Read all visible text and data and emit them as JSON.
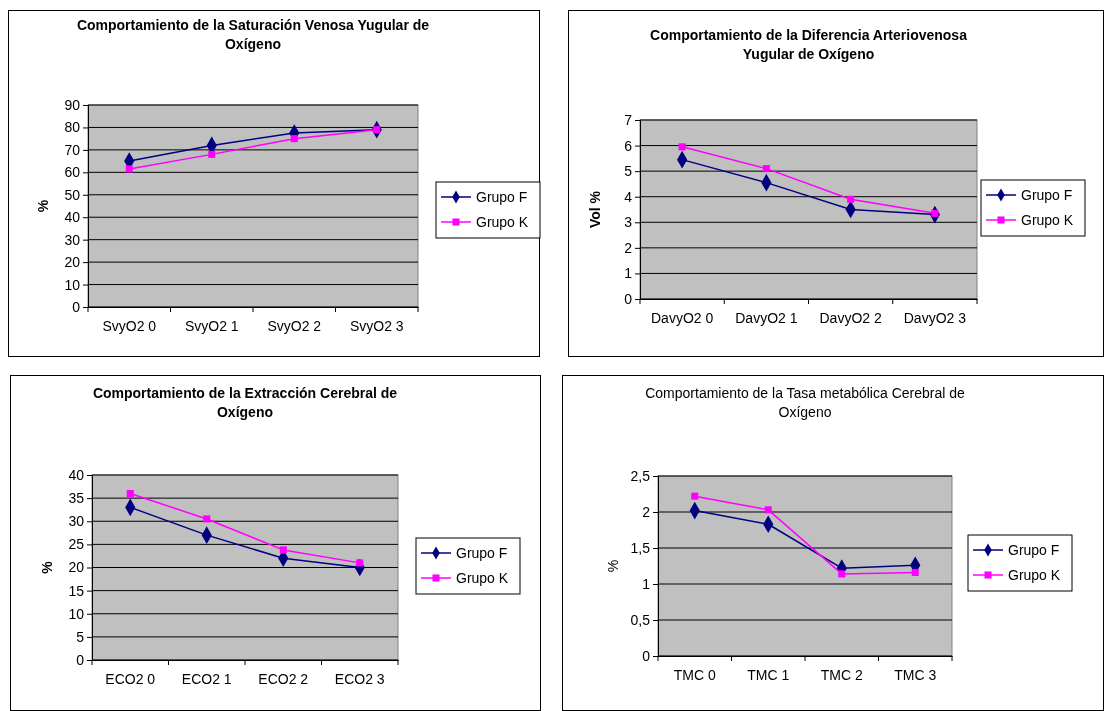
{
  "chart_data": [
    {
      "type": "line",
      "title": "Comportamiento  de la Saturación Venosa Yugular de Oxígeno",
      "ylabel": "%",
      "categories": [
        "SvyO2 0",
        "SvyO2 1",
        "SvyO2 2",
        "SvyO2 3"
      ],
      "ylim": [
        0,
        90
      ],
      "yticks": [
        0,
        10,
        20,
        30,
        40,
        50,
        60,
        70,
        80,
        90
      ],
      "grid": "y",
      "legend": "right",
      "series": [
        {
          "name": "Grupo F",
          "color": "#000080",
          "marker": "diamond",
          "values": [
            65,
            72,
            77.5,
            79
          ]
        },
        {
          "name": "Grupo K",
          "color": "#ff00ff",
          "marker": "square",
          "values": [
            61.5,
            68,
            75,
            79
          ]
        }
      ]
    },
    {
      "type": "line",
      "title": "Comportamiento de la Diferencia Arteriovenosa Yugular de Oxígeno",
      "ylabel": "Vol %",
      "categories": [
        "DavyO2 0",
        "DavyO2 1",
        "DavyO2 2",
        "DavyO2 3"
      ],
      "ylim": [
        0,
        7
      ],
      "yticks": [
        0,
        1,
        2,
        3,
        4,
        5,
        6,
        7
      ],
      "grid": "y",
      "legend": "right",
      "series": [
        {
          "name": "Grupo F",
          "color": "#000080",
          "marker": "diamond",
          "values": [
            5.45,
            4.55,
            3.5,
            3.3
          ]
        },
        {
          "name": "Grupo K",
          "color": "#ff00ff",
          "marker": "square",
          "values": [
            5.95,
            5.1,
            3.9,
            3.35
          ]
        }
      ]
    },
    {
      "type": "line",
      "title": "Comportamiento de la Extracción Cerebral de Oxígeno",
      "ylabel": "%",
      "categories": [
        "ECO2 0",
        "ECO2 1",
        "ECO2 2",
        "ECO2 3"
      ],
      "ylim": [
        0,
        40
      ],
      "yticks": [
        0,
        5,
        10,
        15,
        20,
        25,
        30,
        35,
        40
      ],
      "grid": "y",
      "legend": "right",
      "series": [
        {
          "name": "Grupo F",
          "color": "#000080",
          "marker": "diamond",
          "values": [
            33,
            27,
            22,
            20
          ]
        },
        {
          "name": "Grupo K",
          "color": "#ff00ff",
          "marker": "square",
          "values": [
            36,
            30.5,
            23.8,
            21
          ]
        }
      ]
    },
    {
      "type": "line",
      "title": "Comportamiento de la Tasa metabólica Cerebral de Oxígeno",
      "ylabel": "%",
      "categories": [
        "TMC 0",
        "TMC 1",
        "TMC 2",
        "TMC 3"
      ],
      "ylim": [
        0,
        2.5
      ],
      "yticks": [
        0,
        {
          "value": 0.5,
          "label": "0,5"
        },
        1,
        {
          "value": 1.5,
          "label": "1,5"
        },
        2,
        {
          "value": 2.5,
          "label": "2,5"
        }
      ],
      "grid": "y",
      "legend": "right",
      "series": [
        {
          "name": "Grupo F",
          "color": "#000080",
          "marker": "diamond",
          "values": [
            2.02,
            1.83,
            1.22,
            1.26
          ]
        },
        {
          "name": "Grupo K",
          "color": "#ff00ff",
          "marker": "square",
          "values": [
            2.22,
            2.03,
            1.14,
            1.16
          ]
        }
      ]
    }
  ]
}
